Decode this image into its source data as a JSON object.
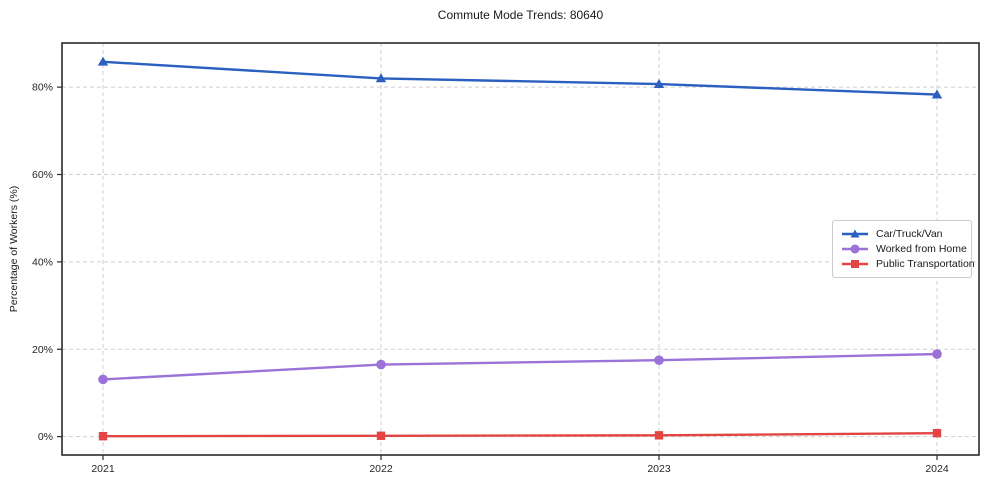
{
  "chart_data": {
    "type": "line",
    "title": "Commute Mode Trends: 80640",
    "xlabel": "",
    "ylabel": "Percentage of Workers (%)",
    "categories": [
      "2021",
      "2022",
      "2023",
      "2024"
    ],
    "series": [
      {
        "name": "Car/Truck/Van",
        "color": "#2b5fc0",
        "marker": "triangle",
        "values": [
          85.8,
          82.0,
          80.7,
          78.3
        ]
      },
      {
        "name": "Worked from Home",
        "color": "#9b72d8",
        "marker": "circle",
        "values": [
          13.1,
          16.5,
          17.5,
          18.9
        ]
      },
      {
        "name": "Public Transportation",
        "color": "#e34444",
        "marker": "square",
        "values": [
          0.1,
          0.2,
          0.3,
          0.8
        ]
      }
    ],
    "ytick_values": [
      0,
      20,
      40,
      60,
      80
    ],
    "ytick_labels": [
      "0%",
      "20%",
      "40%",
      "60%",
      "80%"
    ],
    "ylim": [
      -4.2,
      90.1
    ],
    "grid": true,
    "grid_style": "dashed",
    "legend_position": "center-right",
    "colors": {
      "grid": "#cfcfcf",
      "spine": "#2b2b2b",
      "text": "#1a1a1a"
    }
  }
}
